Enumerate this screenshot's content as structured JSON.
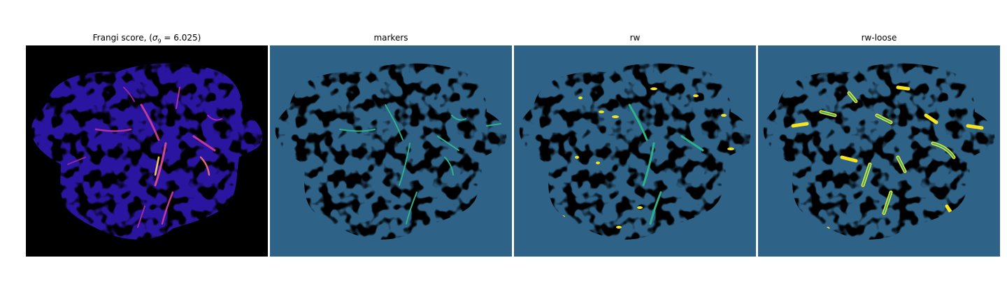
{
  "panels": [
    {
      "title_prefix": "Frangi score, (",
      "sigma_symbol": "σ",
      "sigma_sub": "9",
      "title_suffix": " = 6.025)"
    },
    {
      "title": "markers"
    },
    {
      "title": "rw"
    },
    {
      "title": "rw-loose"
    }
  ],
  "colors": {
    "frangi_background": "#000000",
    "frangi_low": "#1d0c6b",
    "frangi_mid": "#3b1fb8",
    "frangi_high": "#c03a9b",
    "frangi_peak": "#f6c86b",
    "label_background": "#2e6287",
    "label_tissue": "#44055a",
    "label_vessel_marker": "#2fb28a",
    "label_vessel_rw": "#f5e41f"
  }
}
